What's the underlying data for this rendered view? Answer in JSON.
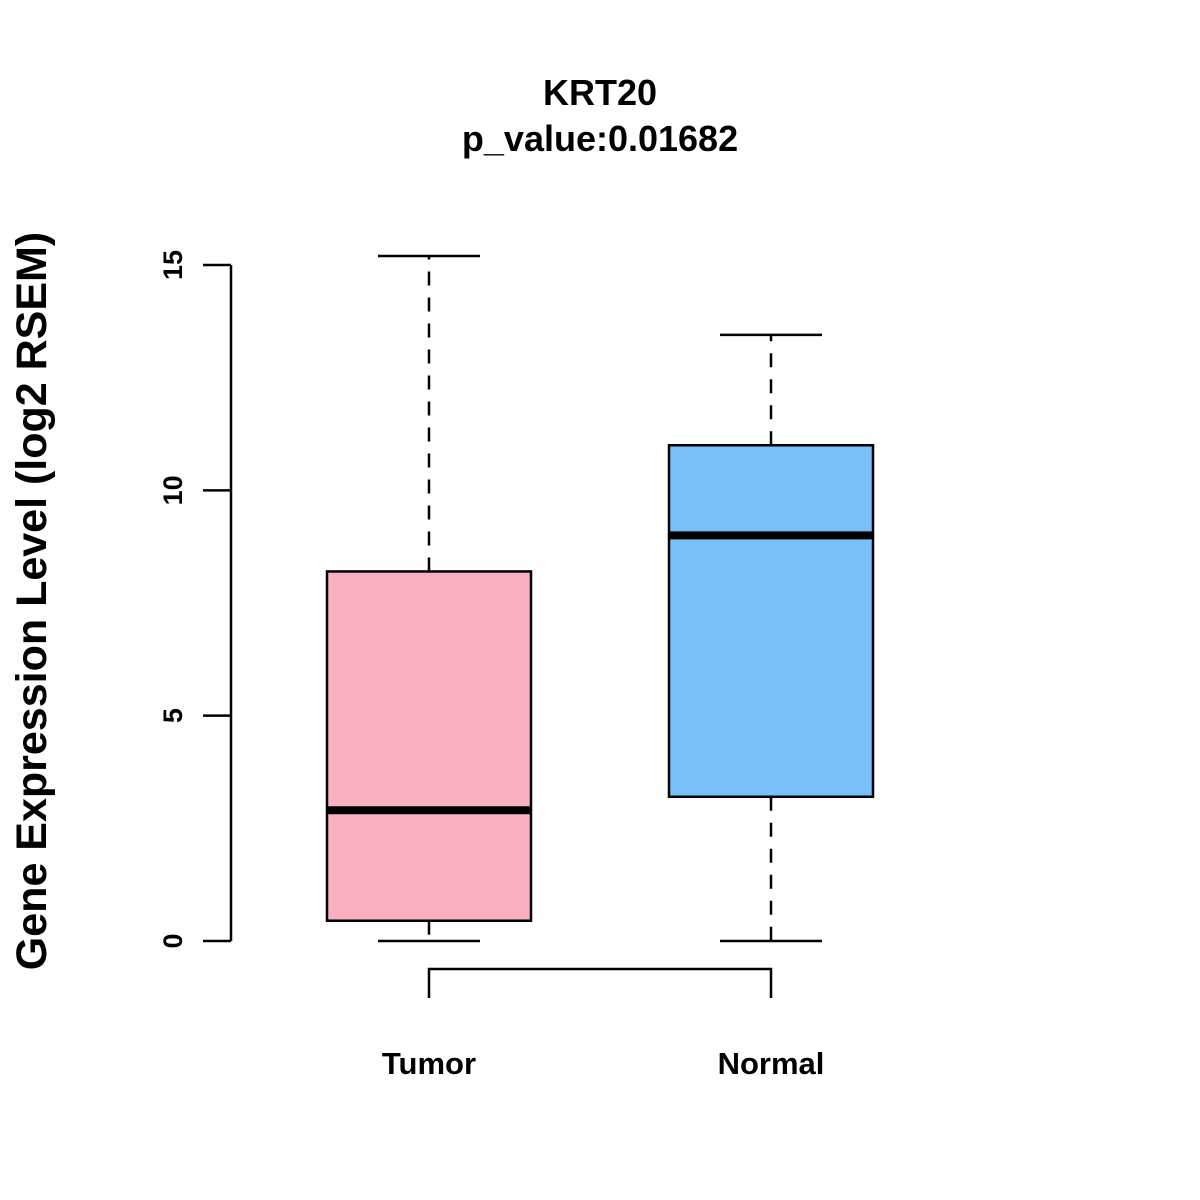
{
  "chart_data": {
    "type": "box",
    "title": "KRT20",
    "subtitle": "p_value:0.01682",
    "xlabel": "",
    "ylabel": "Gene Expression Level (log2 RSEM)",
    "ylim": [
      0,
      15
    ],
    "y_ticks": [
      0,
      5,
      10,
      15
    ],
    "y_tick_labels": [
      "0",
      "5",
      "10",
      "15"
    ],
    "categories": [
      "Tumor",
      "Normal"
    ],
    "series": [
      {
        "name": "Tumor",
        "color": "#FBB0C2",
        "whisker_low": 0,
        "q1": 0.45,
        "median": 2.9,
        "q3": 8.2,
        "whisker_high": 15.2
      },
      {
        "name": "Normal",
        "color": "#77C1F8",
        "whisker_low": 0,
        "q1": 3.2,
        "median": 9.0,
        "q3": 11.0,
        "whisker_high": 13.45
      }
    ],
    "comparison_bracket": [
      "Tumor",
      "Normal"
    ]
  }
}
